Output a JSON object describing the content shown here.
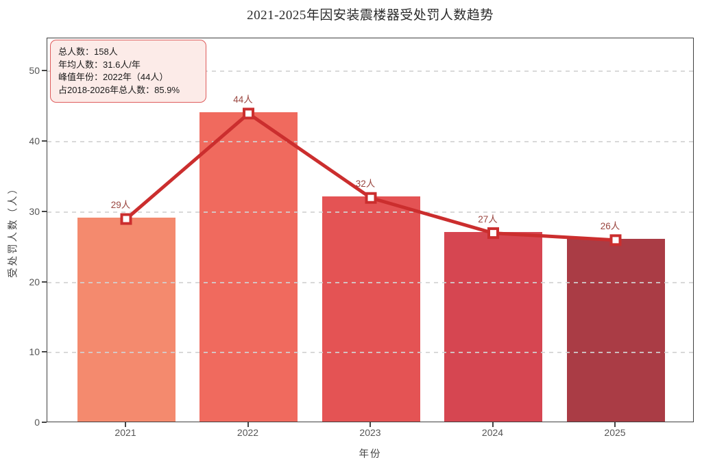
{
  "title": "2021-2025年因安装震楼器受处罚人数趋势",
  "stats_box": {
    "lines": [
      "总人数：158人",
      "年均人数：31.6人/年",
      "峰值年份：2022年（44人）",
      "占2018-2026年总人数：85.9%"
    ]
  },
  "chart_data": {
    "type": "bar",
    "subtype": "bar-with-line-overlay",
    "title": "2021-2025年因安装震楼器受处罚人数趋势",
    "categories": [
      "2021",
      "2022",
      "2023",
      "2024",
      "2025"
    ],
    "values": [
      29,
      44,
      32,
      27,
      26
    ],
    "point_labels": [
      "29人",
      "44人",
      "32人",
      "27人",
      "26人"
    ],
    "xlabel": "年份",
    "ylabel": "受处罚人数（人）",
    "ylim": [
      0,
      54.7
    ],
    "yticks": [
      0,
      10,
      20,
      30,
      40,
      50
    ],
    "grid": "horizontal-dashed",
    "legend": "none",
    "bar_colors": [
      "#F48A6E",
      "#F06A5E",
      "#E45354",
      "#D64651",
      "#AA3C45"
    ],
    "line_color": "#CB2E2E",
    "marker_style": "square-white-fill-red-border",
    "label_color": "#9A4640"
  }
}
